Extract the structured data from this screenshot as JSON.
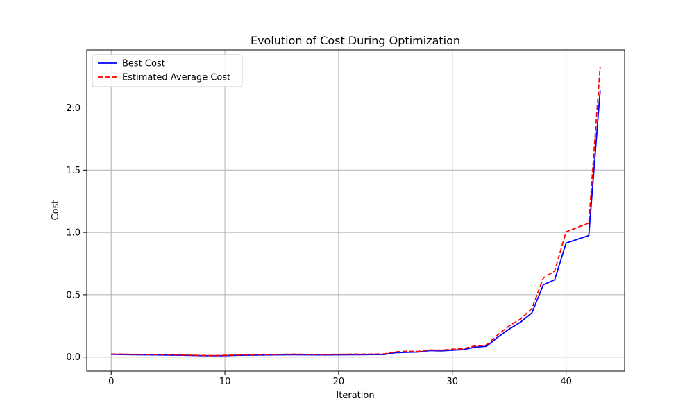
{
  "chart_data": {
    "type": "line",
    "title": "Evolution of Cost During Optimization",
    "xlabel": "Iteration",
    "ylabel": "Cost",
    "xlim": [
      -2.15,
      45.15
    ],
    "ylim": [
      -0.113,
      2.465
    ],
    "xticks": [
      0,
      10,
      20,
      30,
      40
    ],
    "yticks": [
      0.0,
      0.5,
      1.0,
      1.5,
      2.0
    ],
    "xtick_labels": [
      "0",
      "10",
      "20",
      "30",
      "40"
    ],
    "ytick_labels": [
      "0.0",
      "0.5",
      "1.0",
      "1.5",
      "2.0"
    ],
    "grid": true,
    "legend_position": "top-left",
    "x": [
      0,
      1,
      2,
      3,
      4,
      5,
      6,
      7,
      8,
      9,
      10,
      11,
      12,
      13,
      14,
      15,
      16,
      17,
      18,
      19,
      20,
      21,
      22,
      23,
      24,
      25,
      26,
      27,
      28,
      29,
      30,
      31,
      32,
      33,
      34,
      35,
      36,
      37,
      38,
      39,
      40,
      41,
      42,
      43
    ],
    "series": [
      {
        "name": "Best Cost",
        "color": "#0000ff",
        "style": "solid",
        "values": [
          0.022,
          0.02,
          0.019,
          0.018,
          0.017,
          0.016,
          0.015,
          0.013,
          0.011,
          0.01,
          0.011,
          0.014,
          0.015,
          0.016,
          0.017,
          0.018,
          0.019,
          0.018,
          0.017,
          0.017,
          0.018,
          0.019,
          0.019,
          0.02,
          0.021,
          0.035,
          0.038,
          0.04,
          0.052,
          0.049,
          0.055,
          0.06,
          0.08,
          0.086,
          0.16,
          0.225,
          0.28,
          0.355,
          0.58,
          0.62,
          0.915,
          0.945,
          0.975,
          2.14
        ]
      },
      {
        "name": "Estimated Average Cost",
        "color": "#ff0000",
        "style": "dashed",
        "values": [
          0.025,
          0.023,
          0.022,
          0.021,
          0.02,
          0.019,
          0.018,
          0.015,
          0.013,
          0.012,
          0.014,
          0.017,
          0.018,
          0.019,
          0.02,
          0.022,
          0.023,
          0.022,
          0.021,
          0.021,
          0.022,
          0.023,
          0.023,
          0.024,
          0.025,
          0.042,
          0.046,
          0.045,
          0.057,
          0.055,
          0.063,
          0.068,
          0.09,
          0.095,
          0.18,
          0.25,
          0.305,
          0.39,
          0.635,
          0.69,
          1.005,
          1.04,
          1.075,
          2.33
        ]
      }
    ]
  }
}
